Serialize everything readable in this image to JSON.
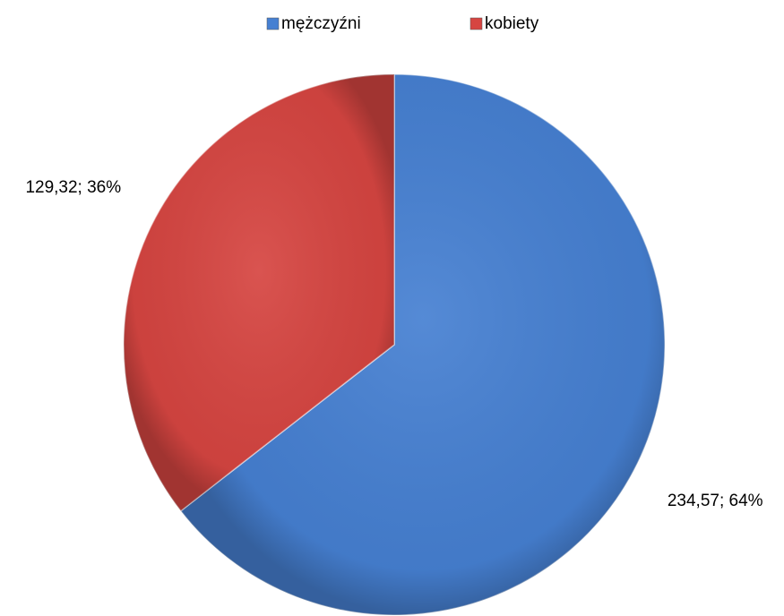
{
  "chart_data": {
    "type": "pie",
    "categories": [
      "mężczyźni",
      "kobiety"
    ],
    "values": [
      234.57,
      129.32
    ],
    "value_labels": [
      "234,57; 64%",
      "129,32; 36%"
    ],
    "colors": [
      "#4680d2",
      "#d64541"
    ],
    "legend": "top"
  }
}
